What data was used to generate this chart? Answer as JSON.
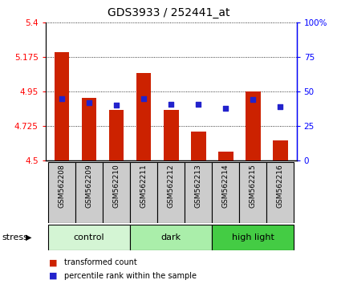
{
  "title": "GDS3933 / 252441_at",
  "samples": [
    "GSM562208",
    "GSM562209",
    "GSM562210",
    "GSM562211",
    "GSM562212",
    "GSM562213",
    "GSM562214",
    "GSM562215",
    "GSM562216"
  ],
  "transformed_counts": [
    5.21,
    4.91,
    4.83,
    5.07,
    4.83,
    4.69,
    4.56,
    4.95,
    4.63
  ],
  "percentile_ranks": [
    45,
    42,
    40,
    45,
    41,
    41,
    38,
    44,
    39
  ],
  "ylim": [
    4.5,
    5.4
  ],
  "yticks": [
    4.5,
    4.725,
    4.95,
    5.175,
    5.4
  ],
  "ytick_labels": [
    "4.5",
    "4.725",
    "4.95",
    "5.175",
    "5.4"
  ],
  "y2lim": [
    0,
    100
  ],
  "y2ticks": [
    0,
    25,
    50,
    75,
    100
  ],
  "y2tick_labels": [
    "0",
    "25",
    "50",
    "75",
    "100%"
  ],
  "bar_color": "#cc2200",
  "dot_color": "#2222cc",
  "base_value": 4.5,
  "groups": [
    {
      "label": "control",
      "start": 0,
      "end": 2,
      "color": "#d4f5d4"
    },
    {
      "label": "dark",
      "start": 3,
      "end": 5,
      "color": "#aaeeaa"
    },
    {
      "label": "high light",
      "start": 6,
      "end": 8,
      "color": "#44cc44"
    }
  ],
  "stress_label": "stress",
  "legend_items": [
    {
      "color": "#cc2200",
      "label": "transformed count"
    },
    {
      "color": "#2222cc",
      "label": "percentile rank within the sample"
    }
  ],
  "tick_label_bg": "#cccccc",
  "title_fontsize": 10,
  "bar_width": 0.55
}
